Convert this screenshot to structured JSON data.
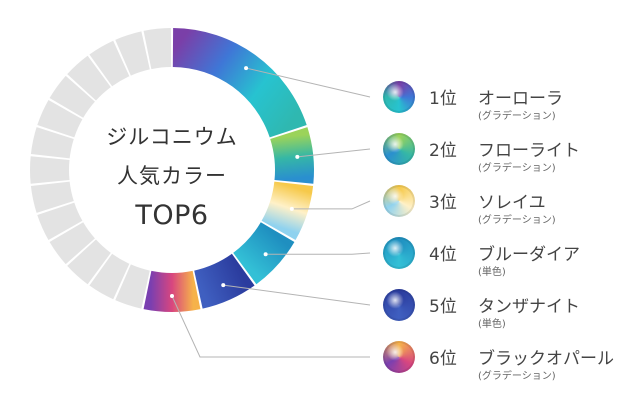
{
  "center": {
    "line1": "ジルコニウム",
    "line2": "人気カラー",
    "line3": "TOP6"
  },
  "colors": {
    "background": "#ffffff",
    "grey_segment": "#e3e3e3",
    "leader_line": "#b4b4b4",
    "text": "#444444"
  },
  "chart_data": {
    "type": "pie",
    "style": "donut",
    "segment_count": 30,
    "ranked_segments": 6,
    "legend_placement": "right",
    "title": "ジルコニウム 人気カラー TOP6",
    "ranked": [
      {
        "rank": "1位",
        "name": "オーローラ",
        "kind": "(グラデーション)",
        "slices": 6,
        "colors": [
          "#7a3fa8",
          "#3f76d6",
          "#27c3d0",
          "#2fb8b0"
        ]
      },
      {
        "rank": "2位",
        "name": "フローライト",
        "kind": "(グラデーション)",
        "slices": 2,
        "colors": [
          "#9bd35a",
          "#35b7a6",
          "#2a8fcf"
        ]
      },
      {
        "rank": "3位",
        "name": "ソレイユ",
        "kind": "(グラデーション)",
        "slices": 2,
        "colors": [
          "#f6c94a",
          "#fff1c8",
          "#8fd2ef"
        ]
      },
      {
        "rank": "4位",
        "name": "ブルーダイア",
        "kind": "(単色)",
        "slices": 2,
        "colors": [
          "#1f8fc0",
          "#33c0d6"
        ]
      },
      {
        "rank": "5位",
        "name": "タンザナイト",
        "kind": "(単色)",
        "slices": 2,
        "colors": [
          "#2b3c9e",
          "#3f5fc0"
        ]
      },
      {
        "rank": "6位",
        "name": "ブラックオパール",
        "kind": "(グラデーション)",
        "slices": 2,
        "colors": [
          "#f6b24a",
          "#d8467f",
          "#7a3fb0"
        ]
      }
    ]
  }
}
